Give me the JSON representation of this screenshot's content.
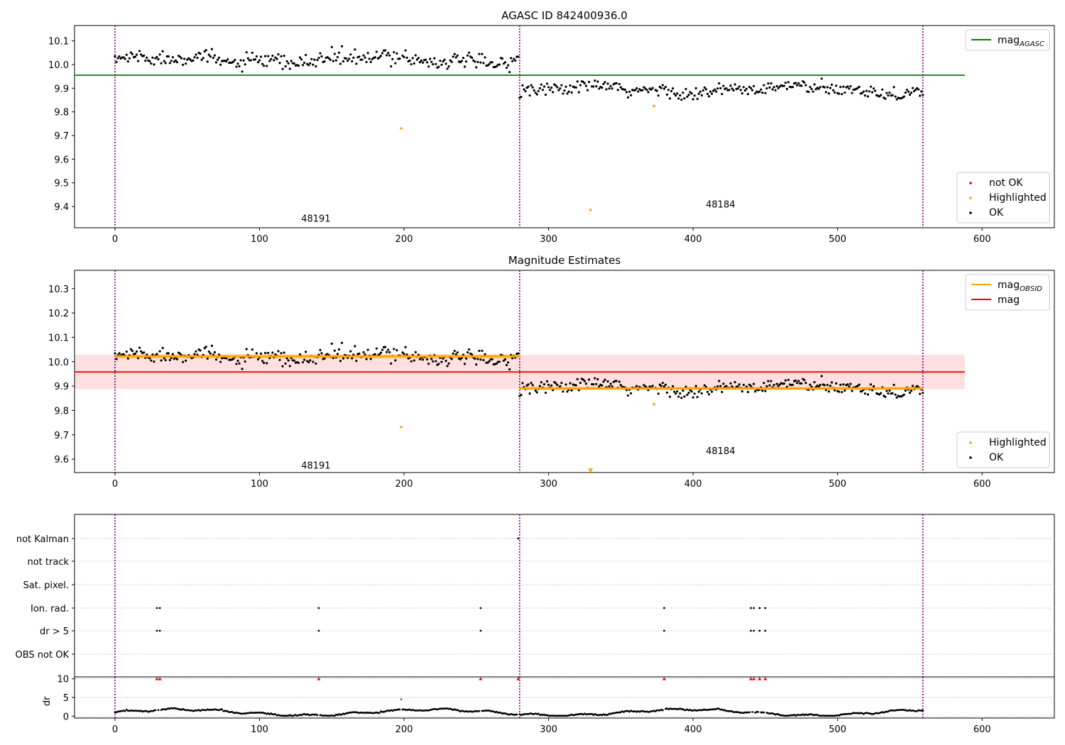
{
  "figure": {
    "title_top": "AGASC ID 842400936.0",
    "title_mid": "Magnitude Estimates"
  },
  "chart_data": [
    {
      "id": "agasc",
      "type": "scatter",
      "title": "AGASC ID 842400936.0",
      "xlim": [
        -28,
        650
      ],
      "ylim": [
        9.31,
        10.165
      ],
      "x_ticks": [
        0,
        100,
        200,
        300,
        400,
        500,
        600
      ],
      "y_ticks": [
        9.4,
        9.5,
        9.6,
        9.7,
        9.8,
        9.9,
        10.0,
        10.1
      ],
      "grid": false,
      "obsid_boundaries": [
        0,
        280,
        559
      ],
      "obsid_labels": [
        {
          "text": "48191",
          "x": 139,
          "y": 9.35
        },
        {
          "text": "48184",
          "x": 419,
          "y": 9.41
        }
      ],
      "lines": [
        {
          "name": "mag_AGASC",
          "y": 9.955,
          "x": [
            -28,
            588
          ],
          "color": "#008000"
        }
      ],
      "observations": [
        {
          "obsid": "48191",
          "x_start": 0,
          "x_end": 279,
          "mean": 10.02,
          "scatter": 0.022
        },
        {
          "obsid": "48184",
          "x_start": 280,
          "x_end": 559,
          "mean": 9.893,
          "scatter": 0.02
        }
      ],
      "highlighted": [
        {
          "x": 198,
          "y": 9.73
        },
        {
          "x": 329,
          "y": 9.385
        },
        {
          "x": 373,
          "y": 9.825
        }
      ],
      "legend_upper": {
        "position": "upper-right",
        "entries": [
          {
            "label": "mag",
            "sub": "AGASC",
            "color": "#008000"
          }
        ]
      },
      "legend_lower": {
        "position": "lower-right",
        "entries": [
          {
            "label": "not OK",
            "color": "#ff0000"
          },
          {
            "label": "Highlighted",
            "color": "#ffa500"
          },
          {
            "label": "OK",
            "color": "#000000"
          }
        ]
      }
    },
    {
      "id": "estimates",
      "type": "scatter",
      "title": "Magnitude Estimates",
      "xlim": [
        -28,
        650
      ],
      "ylim": [
        9.545,
        10.375
      ],
      "x_ticks": [
        0,
        100,
        200,
        300,
        400,
        500,
        600
      ],
      "y_ticks": [
        9.6,
        9.7,
        9.8,
        9.9,
        10.0,
        10.1,
        10.2,
        10.3
      ],
      "grid": false,
      "obsid_boundaries": [
        0,
        280,
        559
      ],
      "obsid_labels": [
        {
          "text": "48191",
          "x": 139,
          "y": 9.575
        },
        {
          "text": "48184",
          "x": 419,
          "y": 9.635
        }
      ],
      "mag": {
        "value": 9.958,
        "band": [
          9.888,
          10.028
        ],
        "x": [
          -28,
          588
        ],
        "color": "#ff0000"
      },
      "mag_obsid": [
        {
          "x": [
            0,
            280
          ],
          "value": 10.022,
          "band": [
            10.012,
            10.032
          ]
        },
        {
          "x": [
            280,
            559
          ],
          "value": 9.89,
          "band": [
            9.883,
            9.897
          ]
        }
      ],
      "highlighted": [
        {
          "x": 198,
          "y": 9.732
        },
        {
          "x": 373,
          "y": 9.825
        }
      ],
      "clipped_marker": {
        "x": 329,
        "y": 9.553
      },
      "legend_upper": {
        "position": "upper-right",
        "entries": [
          {
            "label": "mag",
            "sub": "OBSID",
            "color": "#ffa500"
          },
          {
            "label": "mag",
            "sub": "",
            "color": "#ff0000"
          }
        ]
      },
      "legend_lower": {
        "position": "lower-right",
        "entries": [
          {
            "label": "Highlighted",
            "color": "#ffa500"
          },
          {
            "label": "OK",
            "color": "#000000"
          }
        ]
      }
    },
    {
      "id": "flags",
      "type": "scatter",
      "xlim": [
        -28,
        650
      ],
      "categories": [
        "not Kalman",
        "not track",
        "Sat. pixel.",
        "Ion. rad.",
        "dr > 5",
        "OBS not OK"
      ],
      "grid": true,
      "obsid_boundaries": [
        0,
        280,
        559
      ],
      "flags": {
        "not Kalman": [
          279
        ],
        "not track": [],
        "Sat. pixel.": [],
        "Ion. rad.": [
          29,
          31,
          141,
          253,
          380,
          440,
          442,
          446,
          450
        ],
        "dr > 5": [
          29,
          31,
          141,
          253,
          380,
          440,
          442,
          446,
          450
        ],
        "OBS not OK": []
      }
    },
    {
      "id": "dr",
      "type": "scatter",
      "ylabel": "dr",
      "xlim": [
        -28,
        650
      ],
      "ylim": [
        -0.5,
        10.5
      ],
      "x_ticks": [
        0,
        100,
        200,
        300,
        400,
        500,
        600
      ],
      "y_ticks": [
        0,
        5,
        10
      ],
      "grid": true,
      "clipped_at_10": [
        29,
        31,
        141,
        253,
        279,
        380,
        440,
        442,
        446,
        450
      ],
      "highlighted": [
        {
          "x": 198,
          "y": 4.5
        }
      ]
    }
  ]
}
